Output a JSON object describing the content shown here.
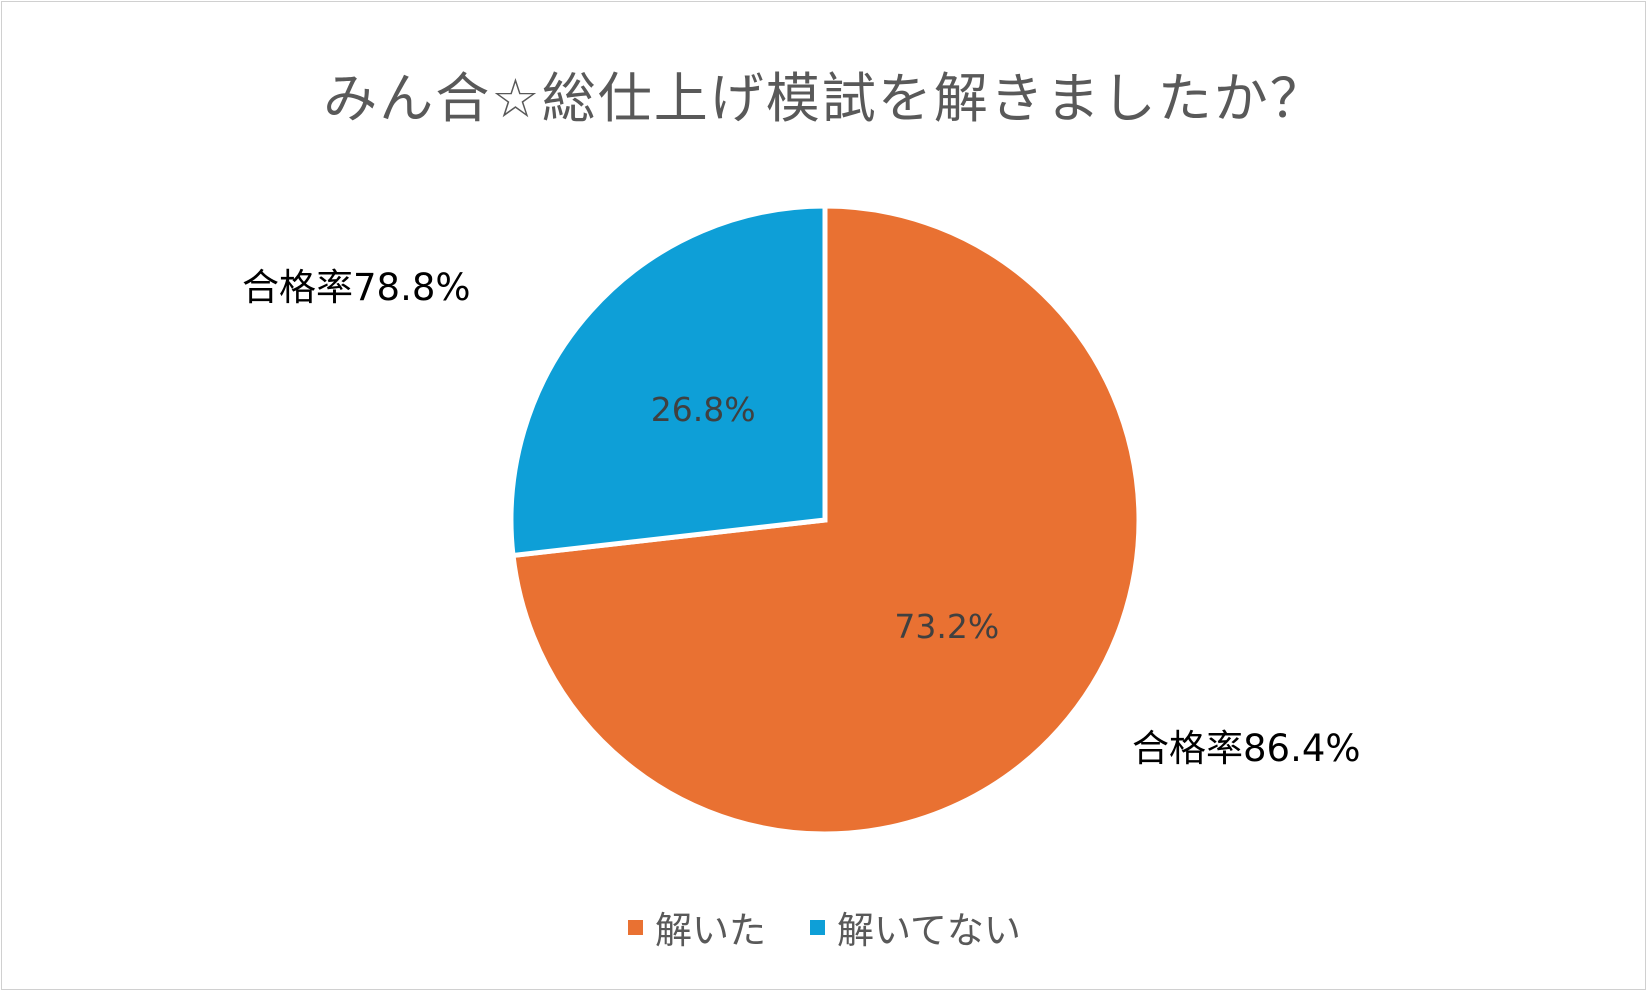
{
  "chart_data": {
    "type": "pie",
    "title": "みん合☆総仕上げ模試を解きましたか？",
    "categories": [
      "解いた",
      "解いてない"
    ],
    "values": [
      73.2,
      26.8
    ],
    "data_labels": [
      "73.2%",
      "26.8%"
    ],
    "colors": [
      "#E97132",
      "#0E9FD7"
    ],
    "legend_position": "bottom",
    "annotations": {
      "solved": "合格率86.4%",
      "not_solved": "合格率78.8%"
    }
  }
}
